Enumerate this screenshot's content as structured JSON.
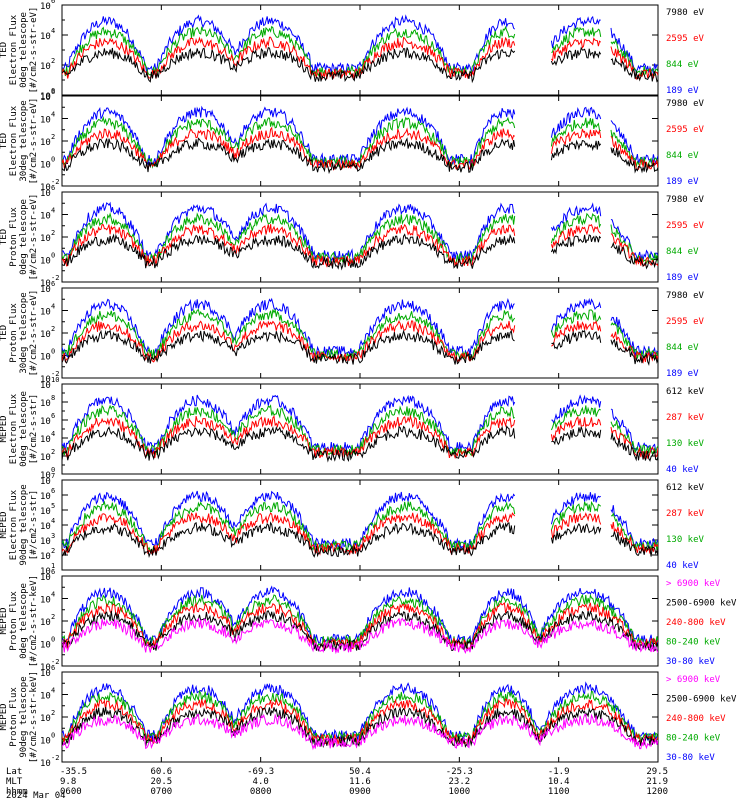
{
  "colors": {
    "blue": "#0000ff",
    "red": "#ff0000",
    "green": "#00ff00",
    "black": "#000000",
    "magenta": "#ff00ff"
  },
  "time_axis": {
    "row_labels": [
      "Lat",
      "MLT",
      "hhmm",
      "2024 Mar 04"
    ],
    "ticks": [
      {
        "lat": "-35.5",
        "mlt": "9.8",
        "hhmm": "0600"
      },
      {
        "lat": "60.6",
        "mlt": "20.5",
        "hhmm": "0700"
      },
      {
        "lat": "-69.3",
        "mlt": "4.0",
        "hhmm": "0800"
      },
      {
        "lat": "50.4",
        "mlt": "11.6",
        "hhmm": "0900"
      },
      {
        "lat": "-25.3",
        "mlt": "23.2",
        "hhmm": "1000"
      },
      {
        "lat": "-1.9",
        "mlt": "10.4",
        "hhmm": "1100"
      },
      {
        "lat": "29.5",
        "mlt": "21.9",
        "hhmm": "1200"
      }
    ]
  },
  "chart_data": [
    {
      "type": "line",
      "title": "",
      "ylabel": [
        "TED",
        "Electron Flux",
        "0deg telescope",
        "[#/cm2-s-str-eV]"
      ],
      "yscale": "log",
      "ylim": [
        1,
        1000000.0
      ],
      "ytick_labels": [
        {
          "m": "10",
          "e": "0"
        },
        {
          "m": "10",
          "e": "2"
        },
        {
          "m": "10",
          "e": "4"
        },
        {
          "m": "10",
          "e": "6"
        }
      ],
      "series": [
        {
          "name": "7980 eV",
          "color": "#000000"
        },
        {
          "name": "2595 eV",
          "color": "#ff0000"
        },
        {
          "name": "844 eV",
          "color": "#00aa00"
        },
        {
          "name": "189 eV",
          "color": "#0000ff"
        }
      ]
    },
    {
      "type": "line",
      "title": "",
      "ylabel": [
        "TED",
        "Electron Flux",
        "30deg telescope",
        "[#/cm2-s-str-eV]"
      ],
      "yscale": "log",
      "ylim": [
        0.01,
        1000000.0
      ],
      "ytick_labels": [
        {
          "m": "10",
          "e": "-2"
        },
        {
          "m": "10",
          "e": "0"
        },
        {
          "m": "10",
          "e": "2"
        },
        {
          "m": "10",
          "e": "4"
        },
        {
          "m": "10",
          "e": "6"
        }
      ],
      "series": [
        {
          "name": "7980 eV",
          "color": "#000000"
        },
        {
          "name": "2595 eV",
          "color": "#ff0000"
        },
        {
          "name": "844 eV",
          "color": "#00aa00"
        },
        {
          "name": "189 eV",
          "color": "#0000ff"
        }
      ]
    },
    {
      "type": "line",
      "title": "",
      "ylabel": [
        "TED",
        "Proton Flux",
        "0deg telescope",
        "[#/cm2-s-str-eV]"
      ],
      "yscale": "log",
      "ylim": [
        0.01,
        1000000.0
      ],
      "ytick_labels": [
        {
          "m": "10",
          "e": "-2"
        },
        {
          "m": "10",
          "e": "0"
        },
        {
          "m": "10",
          "e": "2"
        },
        {
          "m": "10",
          "e": "4"
        },
        {
          "m": "10",
          "e": "6"
        }
      ],
      "series": [
        {
          "name": "7980 eV",
          "color": "#000000"
        },
        {
          "name": "2595 eV",
          "color": "#ff0000"
        },
        {
          "name": "844 eV",
          "color": "#00aa00"
        },
        {
          "name": "189 eV",
          "color": "#0000ff"
        }
      ]
    },
    {
      "type": "line",
      "title": "",
      "ylabel": [
        "TED",
        "Proton Flux",
        "30deg telescope",
        "[#/cm2-s-str-eV]"
      ],
      "yscale": "log",
      "ylim": [
        0.01,
        1000000.0
      ],
      "ytick_labels": [
        {
          "m": "10",
          "e": "-2"
        },
        {
          "m": "10",
          "e": "0"
        },
        {
          "m": "10",
          "e": "2"
        },
        {
          "m": "10",
          "e": "4"
        },
        {
          "m": "10",
          "e": "6"
        }
      ],
      "series": [
        {
          "name": "7980 eV",
          "color": "#000000"
        },
        {
          "name": "2595 eV",
          "color": "#ff0000"
        },
        {
          "name": "844 eV",
          "color": "#00aa00"
        },
        {
          "name": "189 eV",
          "color": "#0000ff"
        }
      ]
    },
    {
      "type": "line",
      "title": "",
      "ylabel": [
        "MEPED",
        "Electron Flux",
        "0deg telescope",
        "[#/cm2-s-str]"
      ],
      "yscale": "log",
      "ylim": [
        1,
        10000000000.0
      ],
      "ytick_labels": [
        {
          "m": "10",
          "e": "0"
        },
        {
          "m": "10",
          "e": "2"
        },
        {
          "m": "10",
          "e": "4"
        },
        {
          "m": "10",
          "e": "6"
        },
        {
          "m": "10",
          "e": "8"
        },
        {
          "m": "10",
          "e": "10"
        }
      ],
      "series": [
        {
          "name": "612 keV",
          "color": "#000000"
        },
        {
          "name": "287 keV",
          "color": "#ff0000"
        },
        {
          "name": "130 keV",
          "color": "#00aa00"
        },
        {
          "name": "40 keV",
          "color": "#0000ff"
        }
      ]
    },
    {
      "type": "line",
      "title": "",
      "ylabel": [
        "MEPED",
        "Electron Flux",
        "90deg telescope",
        "[#/cm2-s-str]"
      ],
      "yscale": "log",
      "ylim": [
        10,
        10000000.0
      ],
      "ytick_labels": [
        {
          "m": "10",
          "e": "1"
        },
        {
          "m": "10",
          "e": "2"
        },
        {
          "m": "10",
          "e": "3"
        },
        {
          "m": "10",
          "e": "4"
        },
        {
          "m": "10",
          "e": "5"
        },
        {
          "m": "10",
          "e": "6"
        },
        {
          "m": "10",
          "e": "7"
        }
      ],
      "series": [
        {
          "name": "612 keV",
          "color": "#000000"
        },
        {
          "name": "287 keV",
          "color": "#ff0000"
        },
        {
          "name": "130 keV",
          "color": "#00aa00"
        },
        {
          "name": "40 keV",
          "color": "#0000ff"
        }
      ]
    },
    {
      "type": "line",
      "title": "",
      "ylabel": [
        "MEPED",
        "Proton Flux",
        "0deg telescope",
        "[#/cm2-s-str-keV]"
      ],
      "yscale": "log",
      "ylim": [
        0.01,
        1000000.0
      ],
      "ytick_labels": [
        {
          "m": "10",
          "e": "-2"
        },
        {
          "m": "10",
          "e": "0"
        },
        {
          "m": "10",
          "e": "2"
        },
        {
          "m": "10",
          "e": "4"
        },
        {
          "m": "10",
          "e": "6"
        }
      ],
      "series": [
        {
          "name": "> 6900 keV",
          "color": "#ff00ff"
        },
        {
          "name": "2500-6900 keV",
          "color": "#000000"
        },
        {
          "name": "240-800 keV",
          "color": "#ff0000"
        },
        {
          "name": "80-240 keV",
          "color": "#00aa00"
        },
        {
          "name": "30-80 keV",
          "color": "#0000ff"
        }
      ]
    },
    {
      "type": "line",
      "title": "",
      "ylabel": [
        "MEPED",
        "Proton Flux",
        "90deg telescope",
        "[#/cm2-s-str-keV]"
      ],
      "yscale": "log",
      "ylim": [
        0.01,
        1000000.0
      ],
      "ytick_labels": [
        {
          "m": "10",
          "e": "-2"
        },
        {
          "m": "10",
          "e": "0"
        },
        {
          "m": "10",
          "e": "2"
        },
        {
          "m": "10",
          "e": "4"
        },
        {
          "m": "10",
          "e": "6"
        }
      ],
      "series": [
        {
          "name": "> 6900 keV",
          "color": "#ff00ff"
        },
        {
          "name": "2500-6900 keV",
          "color": "#000000"
        },
        {
          "name": "240-800 keV",
          "color": "#ff0000"
        },
        {
          "name": "80-240 keV",
          "color": "#00aa00"
        },
        {
          "name": "30-80 keV",
          "color": "#0000ff"
        }
      ]
    }
  ]
}
